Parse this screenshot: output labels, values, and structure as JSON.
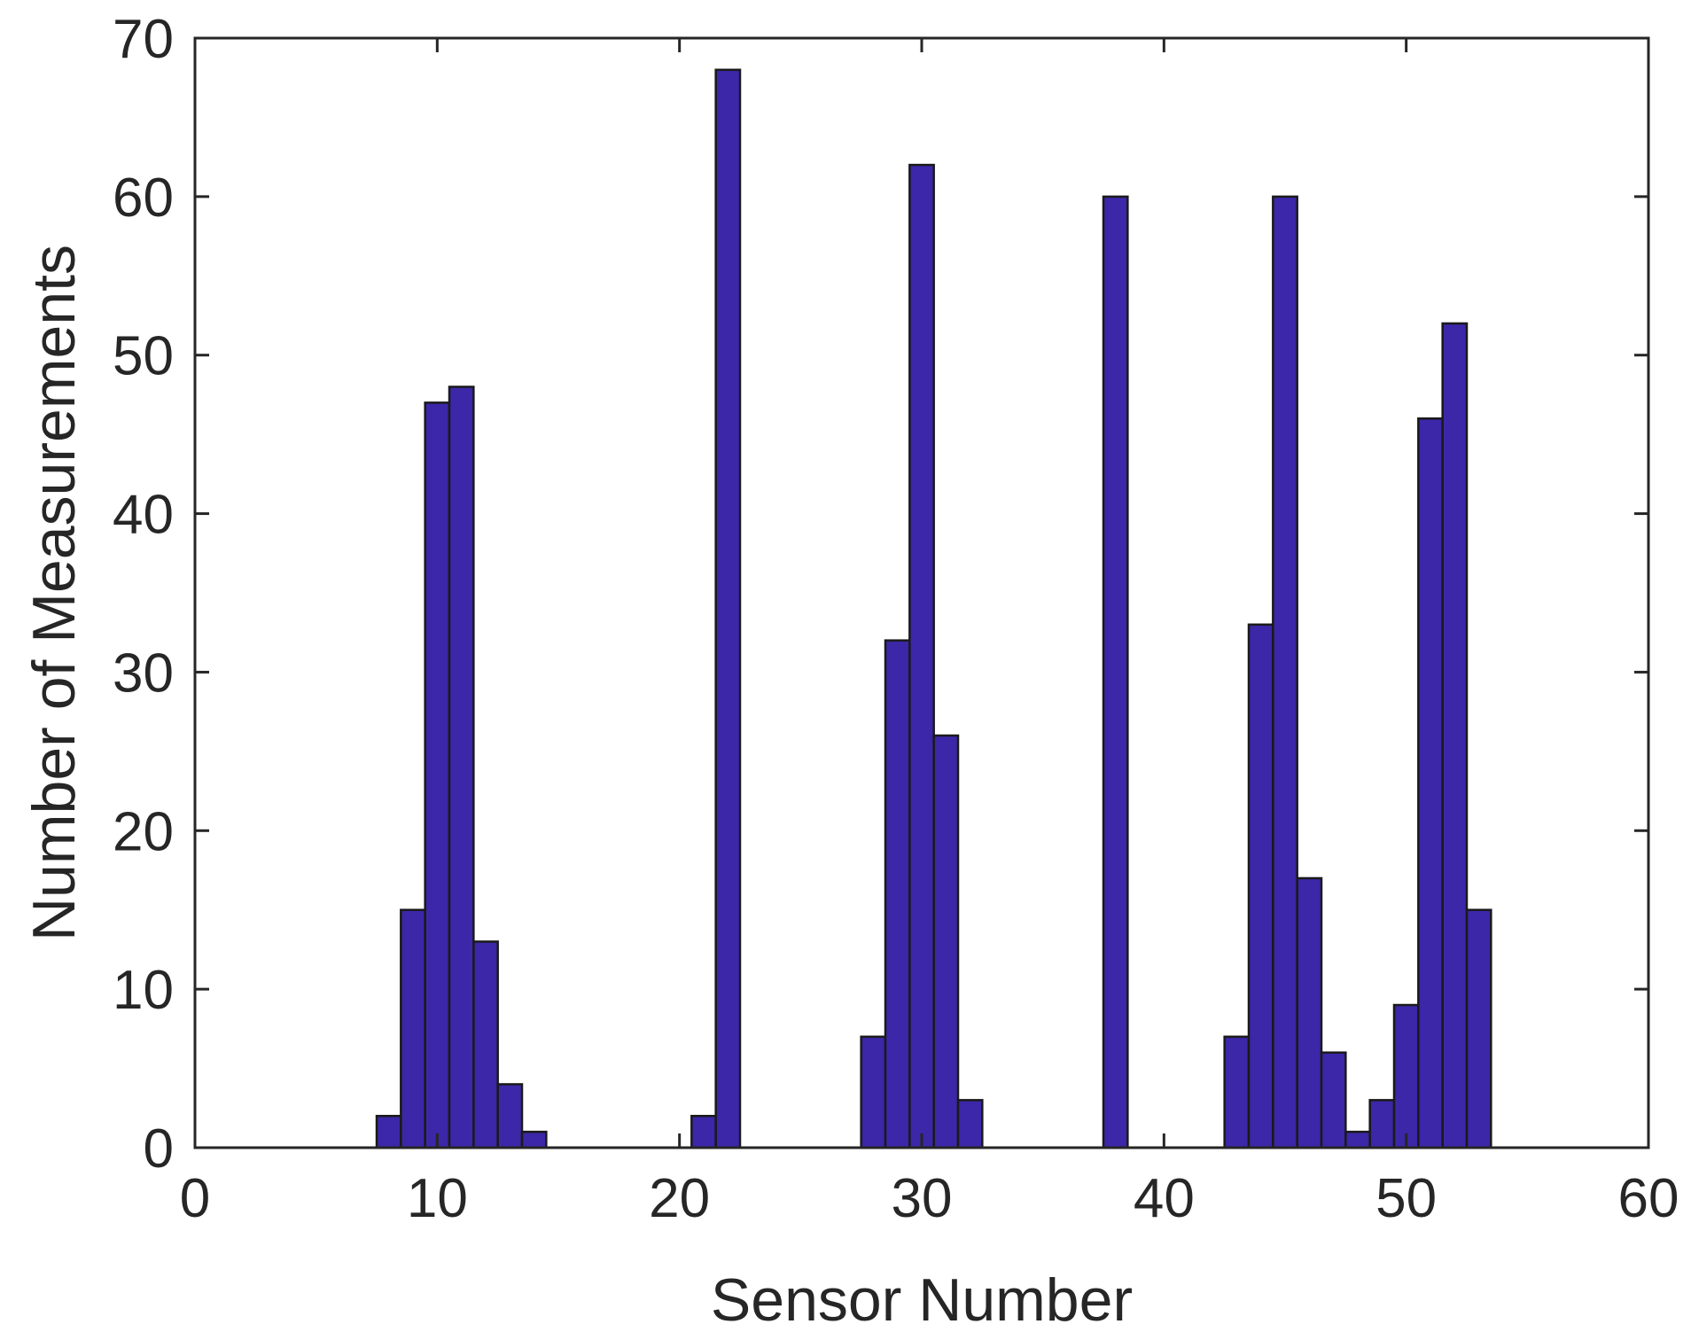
{
  "chart_data": {
    "type": "bar",
    "xlabel": "Sensor Number",
    "ylabel": "Number of Measurements",
    "xlim": [
      0,
      60
    ],
    "ylim": [
      0,
      70
    ],
    "xticks": [
      0,
      10,
      20,
      30,
      40,
      50,
      60
    ],
    "yticks": [
      0,
      10,
      20,
      30,
      40,
      50,
      60,
      70
    ],
    "grid": false,
    "legend": "none",
    "bar_color": "#3B27A8",
    "bar_edge_color": "#1A1A1A",
    "bin_width": 1,
    "bars": [
      {
        "x": 8,
        "value": 2
      },
      {
        "x": 9,
        "value": 15
      },
      {
        "x": 10,
        "value": 47
      },
      {
        "x": 11,
        "value": 48
      },
      {
        "x": 12,
        "value": 13
      },
      {
        "x": 13,
        "value": 4
      },
      {
        "x": 14,
        "value": 1
      },
      {
        "x": 21,
        "value": 2
      },
      {
        "x": 22,
        "value": 68
      },
      {
        "x": 28,
        "value": 7
      },
      {
        "x": 29,
        "value": 32
      },
      {
        "x": 30,
        "value": 62
      },
      {
        "x": 31,
        "value": 26
      },
      {
        "x": 32,
        "value": 3
      },
      {
        "x": 38,
        "value": 60
      },
      {
        "x": 43,
        "value": 7
      },
      {
        "x": 44,
        "value": 33
      },
      {
        "x": 45,
        "value": 60
      },
      {
        "x": 46,
        "value": 17
      },
      {
        "x": 47,
        "value": 6
      },
      {
        "x": 48,
        "value": 1
      },
      {
        "x": 49,
        "value": 3
      },
      {
        "x": 50,
        "value": 9
      },
      {
        "x": 51,
        "value": 46
      },
      {
        "x": 52,
        "value": 52
      },
      {
        "x": 53,
        "value": 15
      }
    ]
  }
}
